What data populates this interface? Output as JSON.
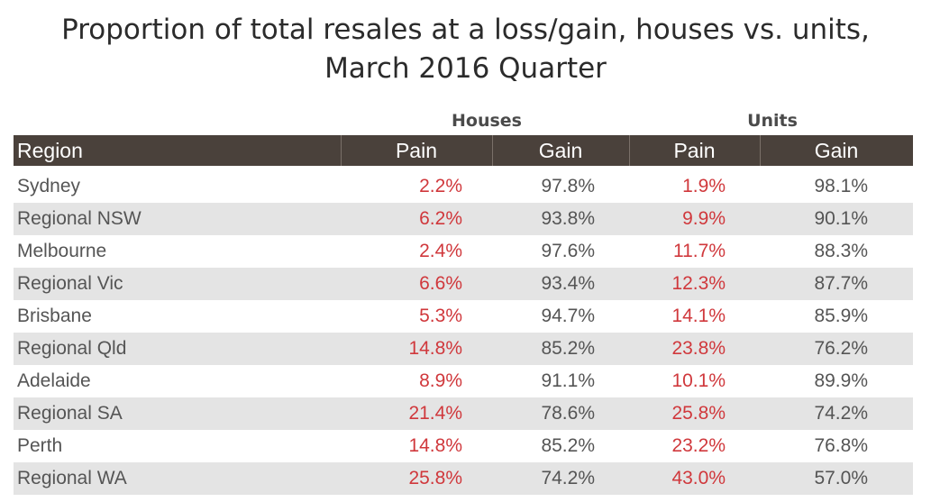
{
  "title_line1": "Proportion of total resales at a loss/gain, houses vs. units,",
  "title_line2": "March 2016 Quarter",
  "groups": {
    "houses": "Houses",
    "units": "Units"
  },
  "headers": {
    "region": "Region",
    "houses_pain": "Pain",
    "houses_gain": "Gain",
    "units_pain": "Pain",
    "units_gain": "Gain"
  },
  "colors": {
    "header_bg": "#4a413b",
    "pain_text": "#d0383c",
    "alt_row": "#e4e4e4"
  },
  "rows": [
    {
      "region": "Sydney",
      "houses_pain": "2.2%",
      "houses_gain": "97.8%",
      "units_pain": "1.9%",
      "units_gain": "98.1%"
    },
    {
      "region": "Regional NSW",
      "houses_pain": "6.2%",
      "houses_gain": "93.8%",
      "units_pain": "9.9%",
      "units_gain": "90.1%"
    },
    {
      "region": "Melbourne",
      "houses_pain": "2.4%",
      "houses_gain": "97.6%",
      "units_pain": "11.7%",
      "units_gain": "88.3%"
    },
    {
      "region": "Regional Vic",
      "houses_pain": "6.6%",
      "houses_gain": "93.4%",
      "units_pain": "12.3%",
      "units_gain": "87.7%"
    },
    {
      "region": "Brisbane",
      "houses_pain": "5.3%",
      "houses_gain": "94.7%",
      "units_pain": "14.1%",
      "units_gain": "85.9%"
    },
    {
      "region": "Regional Qld",
      "houses_pain": "14.8%",
      "houses_gain": "85.2%",
      "units_pain": "23.8%",
      "units_gain": "76.2%"
    },
    {
      "region": "Adelaide",
      "houses_pain": "8.9%",
      "houses_gain": "91.1%",
      "units_pain": "10.1%",
      "units_gain": "89.9%"
    },
    {
      "region": "Regional SA",
      "houses_pain": "21.4%",
      "houses_gain": "78.6%",
      "units_pain": "25.8%",
      "units_gain": "74.2%"
    },
    {
      "region": "Perth",
      "houses_pain": "14.8%",
      "houses_gain": "85.2%",
      "units_pain": "23.2%",
      "units_gain": "76.8%"
    },
    {
      "region": "Regional WA",
      "houses_pain": "25.8%",
      "houses_gain": "74.2%",
      "units_pain": "43.0%",
      "units_gain": "57.0%"
    }
  ]
}
